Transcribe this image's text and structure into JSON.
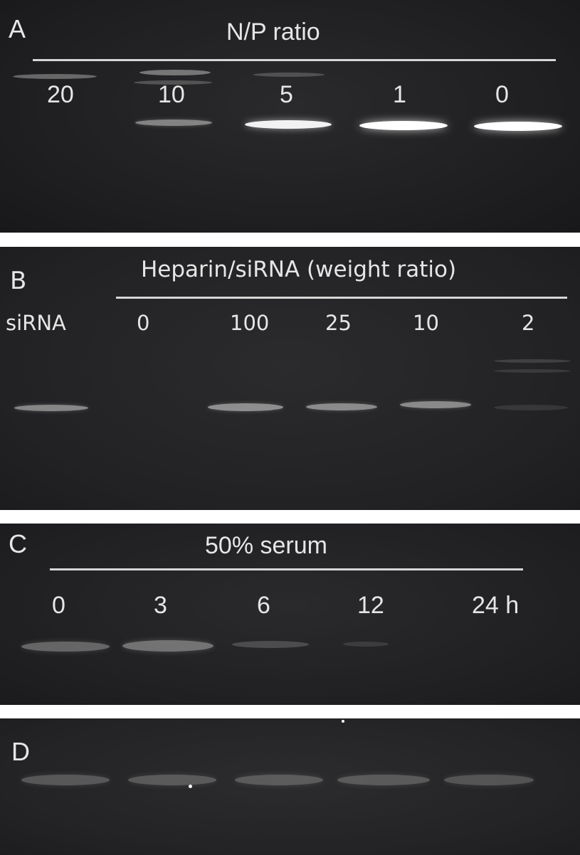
{
  "panels": {
    "a": {
      "letter": "A",
      "title": "N/P ratio",
      "lanes": [
        "20",
        "10",
        "5",
        "1",
        "0"
      ]
    },
    "b": {
      "letter": "B",
      "title": "Heparin/siRNA (weight ratio)",
      "control_label": "siRNA",
      "lanes": [
        "0",
        "100",
        "25",
        "10",
        "2"
      ]
    },
    "c": {
      "letter": "C",
      "title": "50% serum",
      "lanes": [
        "0",
        "3",
        "6",
        "12",
        "24 h"
      ]
    },
    "d": {
      "letter": "D"
    }
  }
}
